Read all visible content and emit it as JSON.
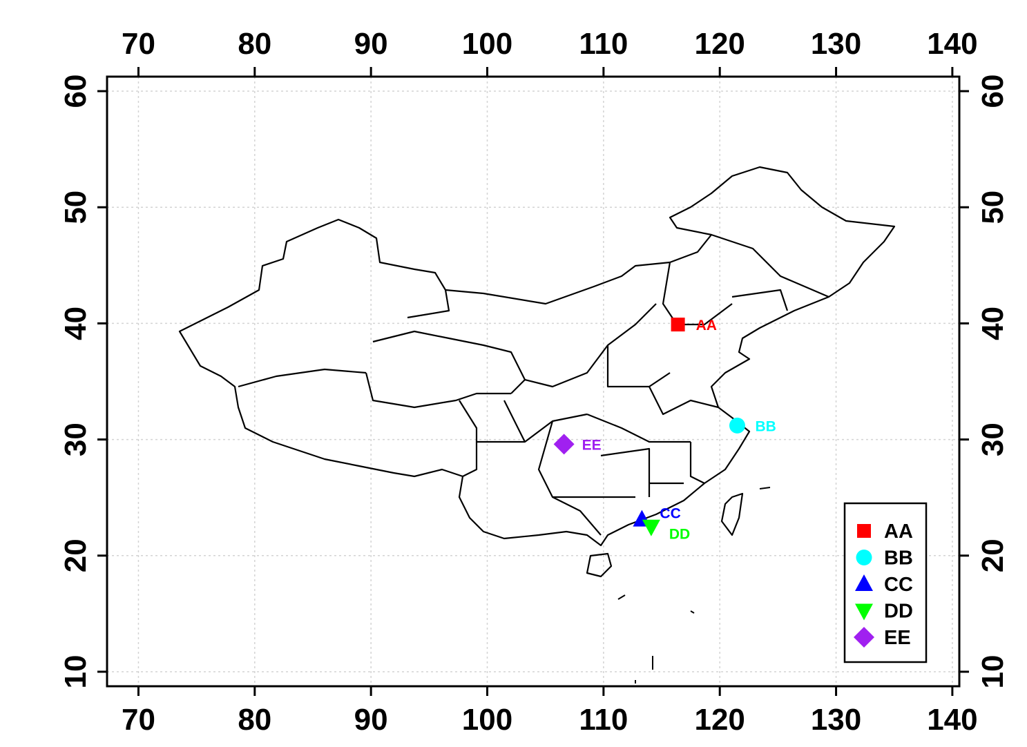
{
  "chart_data": {
    "type": "scatter",
    "title": "",
    "xlabel": "",
    "ylabel": "",
    "xlim": [
      67.3,
      140.6
    ],
    "ylim": [
      8.75,
      61.25
    ],
    "x_ticks": [
      70,
      80,
      90,
      100,
      110,
      120,
      130,
      140
    ],
    "y_ticks": [
      10,
      20,
      30,
      40,
      50,
      60
    ],
    "grid": true,
    "legend_position": "bottom-right",
    "basemap": "China provincial boundaries",
    "series": [
      {
        "name": "AA",
        "x": 116.4,
        "y": 39.9,
        "color": "#ff0000",
        "marker": "square"
      },
      {
        "name": "BB",
        "x": 121.5,
        "y": 31.2,
        "color": "#00ffff",
        "marker": "circle"
      },
      {
        "name": "CC",
        "x": 113.3,
        "y": 23.1,
        "color": "#0000ff",
        "marker": "triangle-up"
      },
      {
        "name": "DD",
        "x": 114.1,
        "y": 22.5,
        "color": "#00ff00",
        "marker": "triangle-down"
      },
      {
        "name": "EE",
        "x": 106.6,
        "y": 29.6,
        "color": "#a020f0",
        "marker": "diamond"
      }
    ]
  }
}
